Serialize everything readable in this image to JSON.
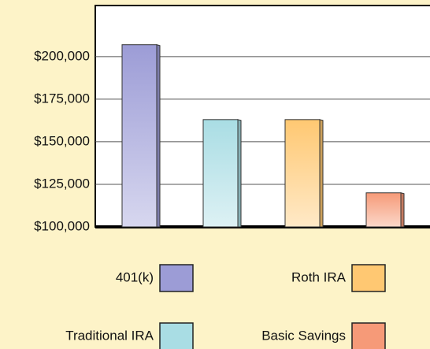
{
  "chart_data": {
    "type": "bar",
    "categories": [
      "401(k)",
      "Traditional IRA",
      "Roth IRA",
      "Basic Savings"
    ],
    "values": [
      207000,
      163000,
      163000,
      120000
    ],
    "colors": [
      "#9c9cd6",
      "#a9dde4",
      "#ffc872",
      "#f69a78"
    ],
    "ylim": [
      100000,
      230000
    ],
    "yticks": [
      {
        "value": 100000,
        "label": "$100,000"
      },
      {
        "value": 125000,
        "label": "$125,000"
      },
      {
        "value": 150000,
        "label": "$150,000"
      },
      {
        "value": 175000,
        "label": "$175,000"
      },
      {
        "value": 200000,
        "label": "$200,000"
      }
    ],
    "grid": true
  }
}
